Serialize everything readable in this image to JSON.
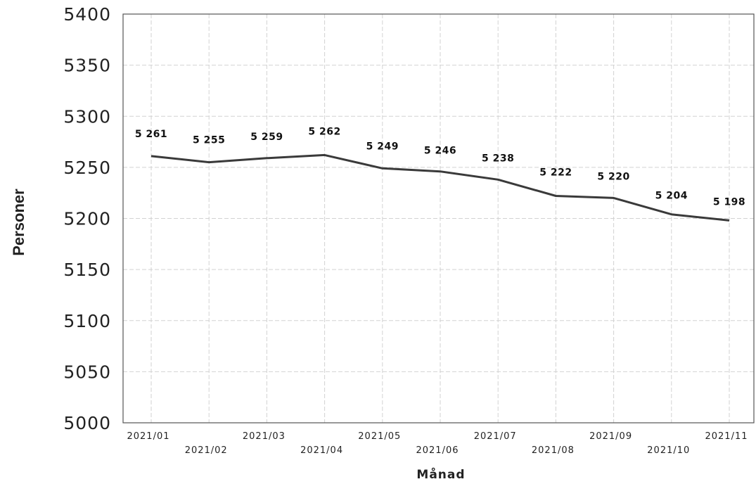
{
  "chart_data": {
    "type": "line",
    "title": "",
    "xlabel": "Månad",
    "ylabel": "Personer",
    "ylim": [
      5000,
      5400
    ],
    "yticks": [
      "5400",
      "5350",
      "5300",
      "5250",
      "5200",
      "5150",
      "5100",
      "5050",
      "5000"
    ],
    "ytick_values": [
      5400,
      5350,
      5300,
      5250,
      5200,
      5150,
      5100,
      5050,
      5000
    ],
    "categories": [
      "2021/01",
      "2021/02",
      "2021/03",
      "2021/04",
      "2021/05",
      "2021/06",
      "2021/07",
      "2021/08",
      "2021/09",
      "2021/10",
      "2021/11"
    ],
    "values": [
      5261,
      5255,
      5259,
      5262,
      5249,
      5246,
      5238,
      5222,
      5220,
      5204,
      5198
    ],
    "data_labels": [
      "5 261",
      "5 255",
      "5 259",
      "5 262",
      "5 249",
      "5 246",
      "5 238",
      "5 222",
      "5 220",
      "5 204",
      "5 198"
    ],
    "grid": true,
    "legend": "none",
    "line_color": "#3a3a3a"
  }
}
